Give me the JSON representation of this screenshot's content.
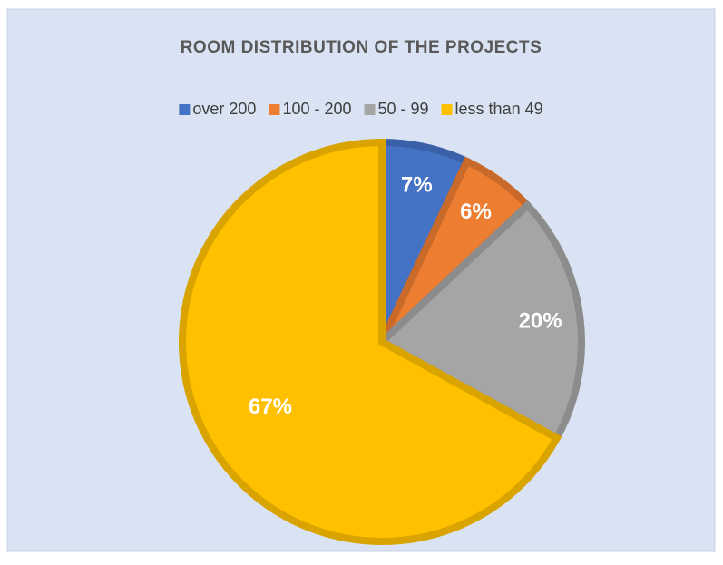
{
  "chart_data": {
    "type": "pie",
    "title": "ROOM DISTRIBUTION OF THE PROJECTS",
    "categories": [
      "over 200",
      "100 - 200",
      "50 - 99",
      "less than 49"
    ],
    "values": [
      7,
      6,
      20,
      67
    ],
    "value_labels": [
      "7%",
      "6%",
      "20%",
      "67%"
    ],
    "colors": [
      "#4472c4",
      "#ed7d31",
      "#a5a5a5",
      "#ffc000"
    ],
    "legend": "top"
  }
}
